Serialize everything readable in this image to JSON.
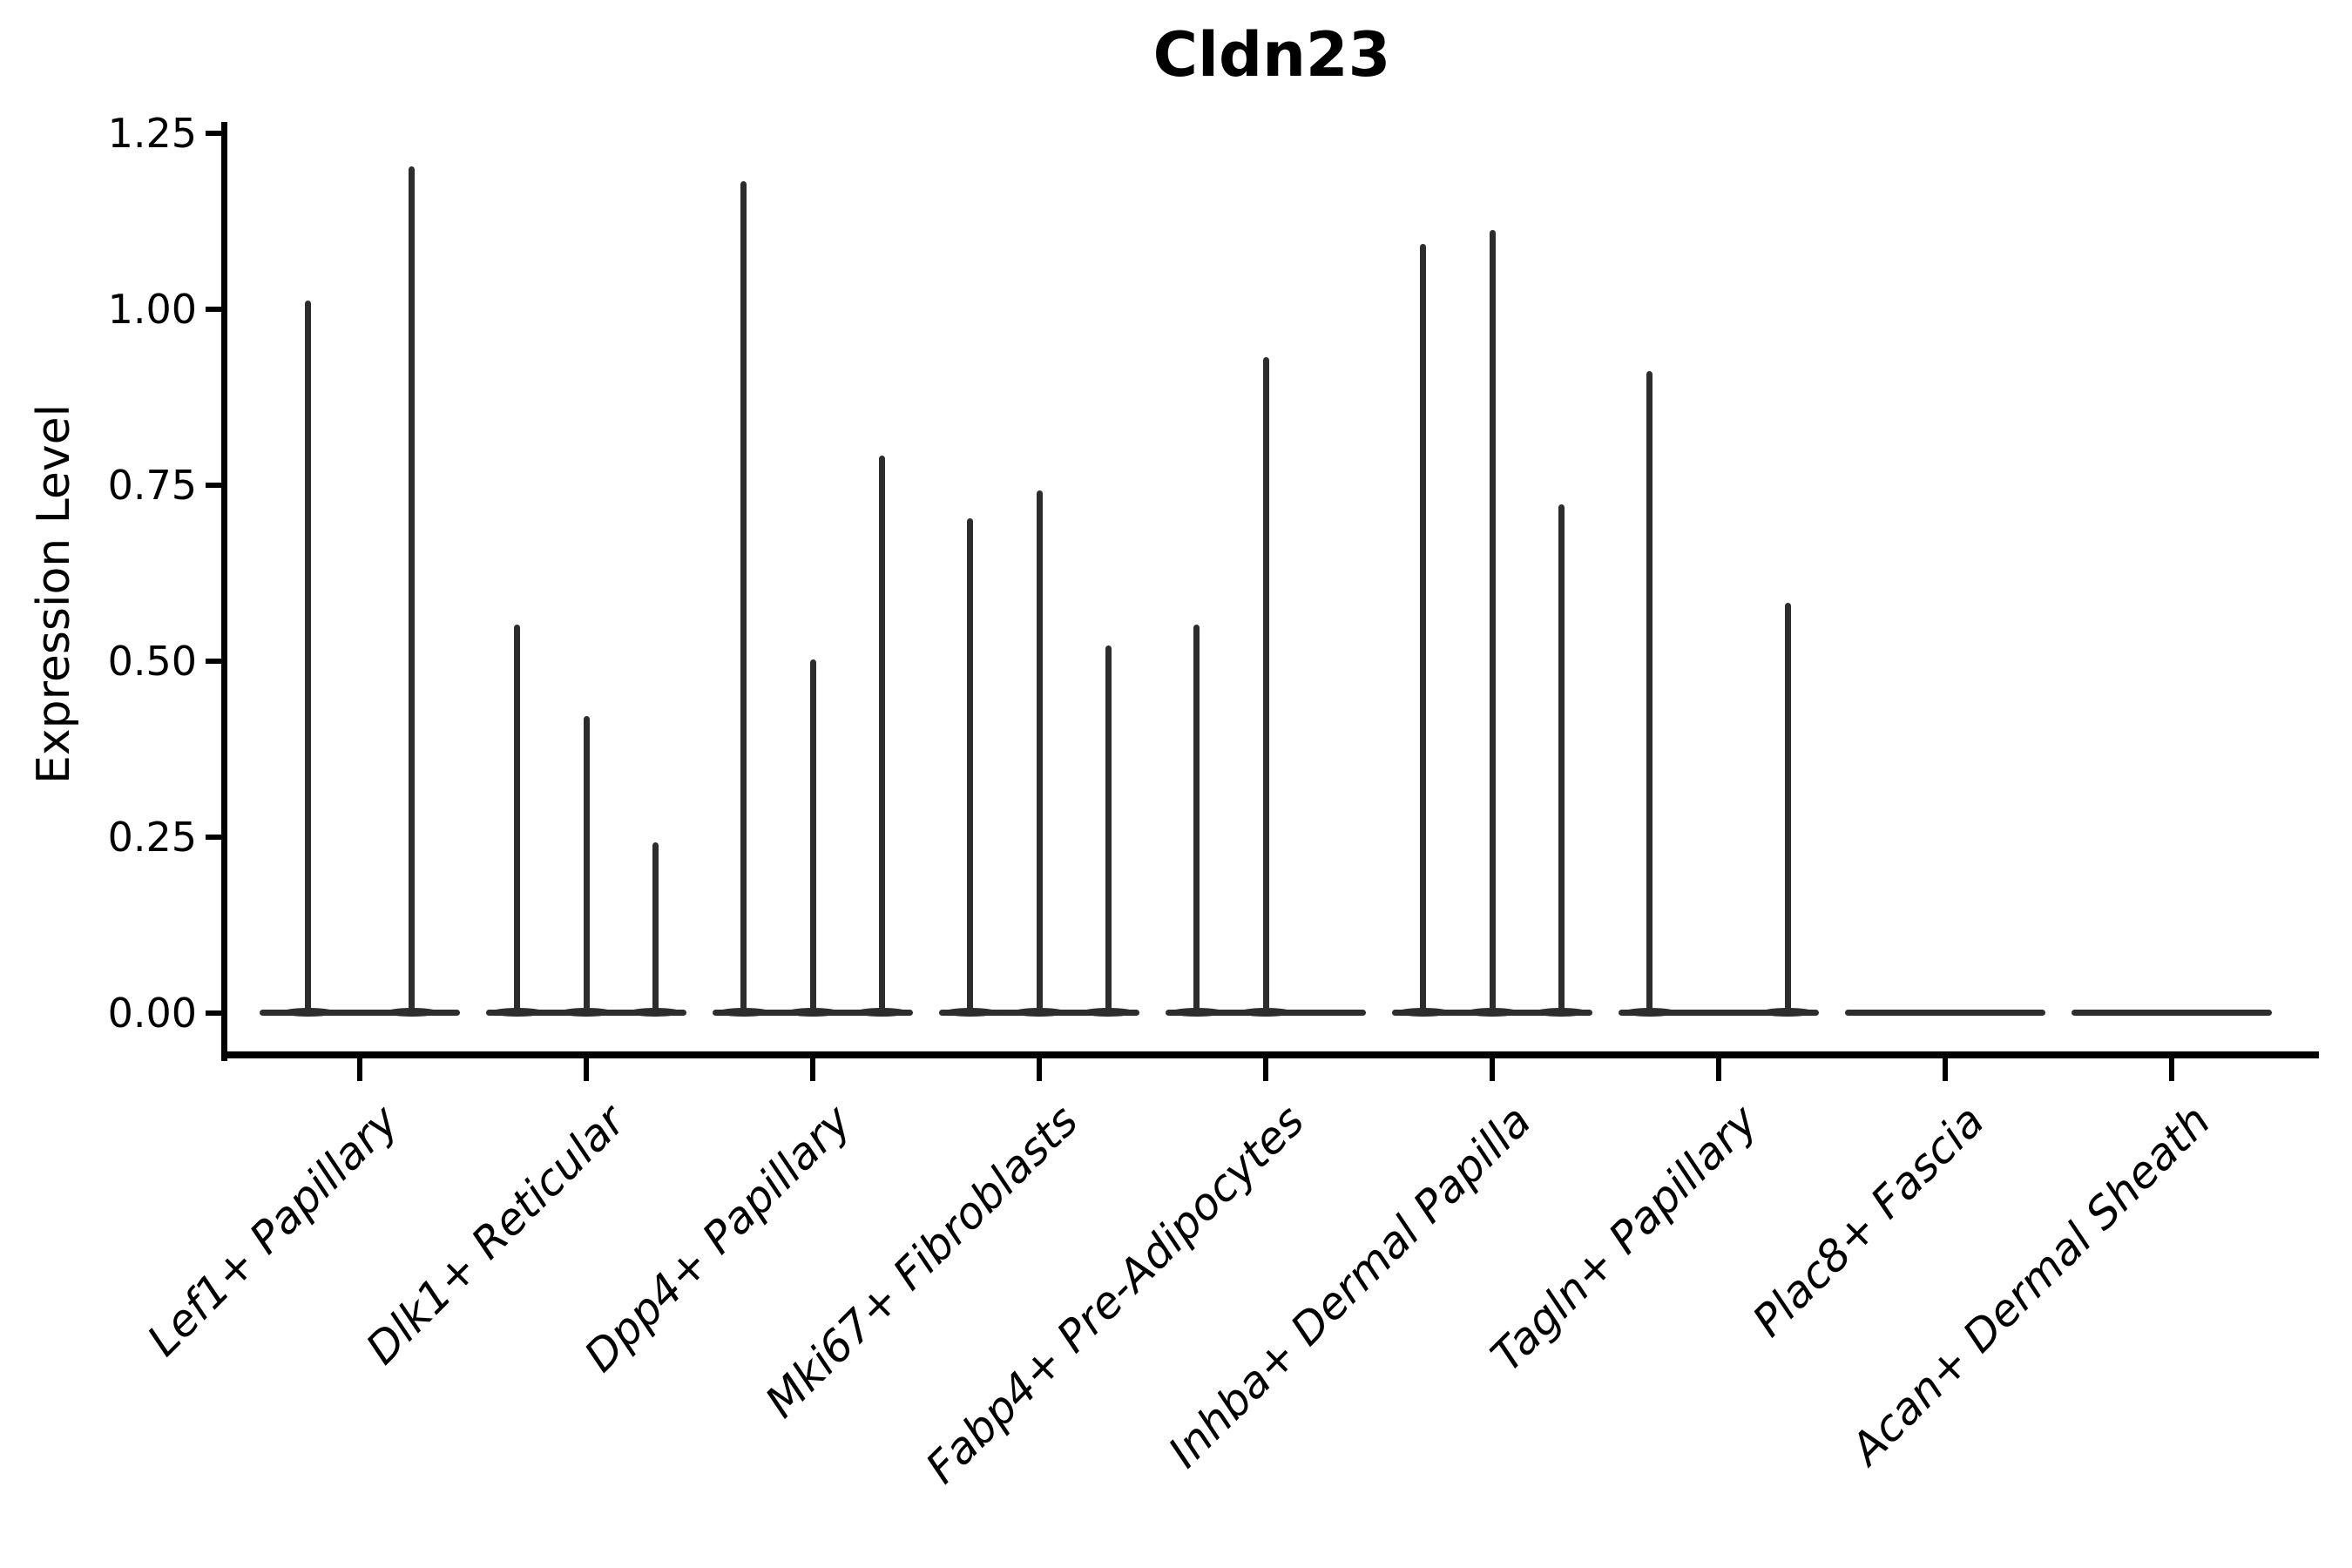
{
  "figure": {
    "title": "Cldn23"
  },
  "chart_data": {
    "type": "violin",
    "title": "Cldn23",
    "subtitle": "",
    "xlabel": "",
    "ylabel": "Expression Level",
    "ylim": [
      0,
      1.25
    ],
    "ytick_labels": [
      "0.00",
      "0.25",
      "0.50",
      "0.75",
      "1.00",
      "1.25"
    ],
    "grid": false,
    "legend": null,
    "categories": [
      "Lef1+ Papillary",
      "Dlk1+ Reticular",
      "Dpp4+ Papillary",
      "Mki67+ Fibroblasts",
      "Fabp4+ Pre-Adipocytes",
      "Inhba+ Dermal Papilla",
      "Tagln+ Papillary",
      "Plac8+ Fascia",
      "Acan+ Dermal Sheath"
    ],
    "groups": [
      {
        "category": "Lef1+ Papillary",
        "violin_max_values": [
          1.01,
          1.2
        ]
      },
      {
        "category": "Dlk1+ Reticular",
        "violin_max_values": [
          0.55,
          0.42,
          0.24
        ]
      },
      {
        "category": "Dpp4+ Papillary",
        "violin_max_values": [
          1.18,
          0.5,
          0.79
        ]
      },
      {
        "category": "Mki67+ Fibroblasts",
        "violin_max_values": [
          0.7,
          0.74,
          0.52
        ]
      },
      {
        "category": "Fabp4+ Pre-Adipocytes",
        "violin_max_values": [
          0.55,
          0.93,
          0.0
        ]
      },
      {
        "category": "Inhba+ Dermal Papilla",
        "violin_max_values": [
          1.09,
          1.11,
          0.72
        ]
      },
      {
        "category": "Tagln+ Papillary",
        "violin_max_values": [
          0.91,
          0.0,
          0.58
        ]
      },
      {
        "category": "Plac8+ Fascia",
        "violin_max_values": [
          0.0
        ]
      },
      {
        "category": "Acan+ Dermal Sheath",
        "violin_max_values": [
          0.0
        ]
      }
    ],
    "colors": {
      "violin_stroke": "#2d2d2d",
      "axis": "#000000",
      "text": "#000000",
      "background": "#ffffff"
    }
  }
}
